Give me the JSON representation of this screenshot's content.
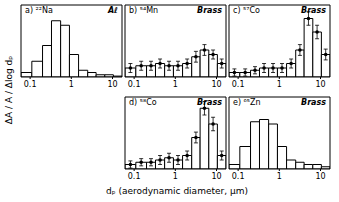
{
  "ylabel": "ΔA / A / Δlog dₚ",
  "xlabel": "dₚ (aerodynamic diameter, μm)",
  "chart_data": [
    {
      "type": "histogram",
      "title": "a) ²²Na",
      "annotation": "Aℓ",
      "bins": [
        0.06,
        0.11,
        0.2,
        0.33,
        0.55,
        0.9,
        1.5,
        2.5,
        4,
        6.5,
        10.5,
        17
      ],
      "values": [
        0.1,
        0.35,
        0.7,
        1.25,
        1.15,
        0.5,
        0.15,
        0.1,
        0.05,
        0.05,
        0.02
      ],
      "color": "#000000",
      "xlim": [
        0.06,
        17
      ],
      "xticks": [
        0.1,
        1,
        10
      ],
      "ylim": [
        0,
        1.6
      ],
      "log": "x",
      "tick_labels": "x"
    },
    {
      "type": "histogram",
      "title": "b) ⁵⁴Mn",
      "annotation": "Brass",
      "bins": [
        0.06,
        0.11,
        0.2,
        0.33,
        0.55,
        0.9,
        1.5,
        2.5,
        4,
        6.5,
        10.5,
        17
      ],
      "values": [
        0.2,
        0.25,
        0.25,
        0.3,
        0.25,
        0.25,
        0.3,
        0.45,
        0.6,
        0.5,
        0.3
      ],
      "errors": [
        0.1,
        0.1,
        0.1,
        0.1,
        0.1,
        0.1,
        0.1,
        0.12,
        0.12,
        0.1,
        0.1
      ],
      "color": "#000000",
      "xlim": [
        0.06,
        17
      ],
      "xticks": [
        0.1,
        1,
        10
      ],
      "ylim": [
        0,
        1.6
      ],
      "log": "x",
      "tick_labels": "x"
    },
    {
      "type": "histogram",
      "title": "c) ⁵⁷Co",
      "annotation": "Brass",
      "bins": [
        0.06,
        0.11,
        0.2,
        0.33,
        0.55,
        0.9,
        1.5,
        2.5,
        4,
        6.5,
        10.5,
        17
      ],
      "values": [
        0.1,
        0.1,
        0.15,
        0.2,
        0.2,
        0.2,
        0.3,
        0.6,
        1.3,
        1.0,
        0.5
      ],
      "errors": [
        0.08,
        0.08,
        0.08,
        0.1,
        0.1,
        0.1,
        0.1,
        0.12,
        0.15,
        0.15,
        0.12
      ],
      "color": "#000000",
      "xlim": [
        0.06,
        17
      ],
      "xticks": [
        0.1,
        1,
        10
      ],
      "ylim": [
        0,
        1.6
      ],
      "log": "x",
      "tick_labels": "x"
    },
    {
      "type": "histogram",
      "title": "d) ⁵⁸Co",
      "annotation": "Brass",
      "bins": [
        0.06,
        0.11,
        0.2,
        0.33,
        0.55,
        0.9,
        1.5,
        2.5,
        4,
        6.5,
        10.5,
        17
      ],
      "values": [
        0.1,
        0.15,
        0.15,
        0.2,
        0.25,
        0.2,
        0.3,
        0.7,
        1.35,
        1.0,
        0.3
      ],
      "errors": [
        0.08,
        0.08,
        0.08,
        0.1,
        0.1,
        0.1,
        0.1,
        0.12,
        0.15,
        0.15,
        0.1
      ],
      "color": "#000000",
      "xlim": [
        0.06,
        17
      ],
      "xticks": [
        0.1,
        1,
        10
      ],
      "ylim": [
        0,
        1.6
      ],
      "log": "x",
      "tick_labels": "x"
    },
    {
      "type": "histogram",
      "title": "e) ⁶⁵Zn",
      "annotation": "Brass",
      "bins": [
        0.06,
        0.11,
        0.2,
        0.33,
        0.55,
        0.9,
        1.5,
        2.5,
        4,
        6.5,
        10.5,
        17
      ],
      "values": [
        0.1,
        0.5,
        1.05,
        1.1,
        1.0,
        0.5,
        0.2,
        0.15,
        0.1,
        0.1,
        0.05
      ],
      "color": "#000000",
      "xlim": [
        0.06,
        17
      ],
      "xticks": [
        0.1,
        1,
        10
      ],
      "ylim": [
        0,
        1.6
      ],
      "log": "x",
      "tick_labels": "x"
    }
  ]
}
